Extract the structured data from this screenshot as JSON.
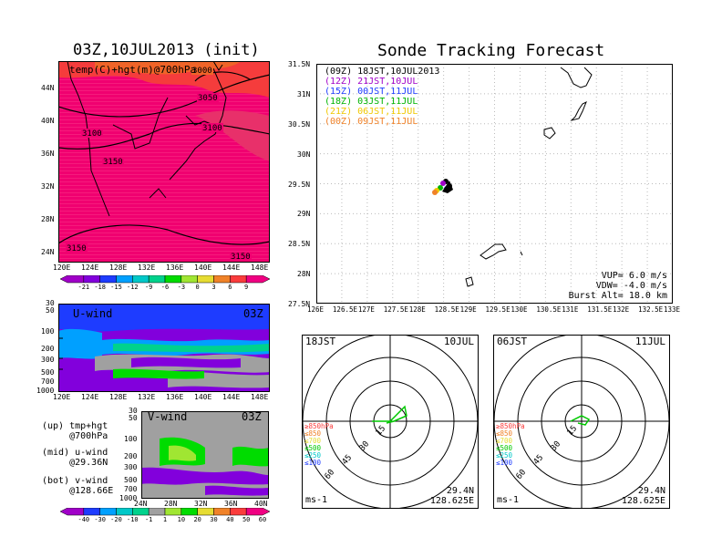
{
  "map_panel": {
    "title": "03Z,10JUL2013 (init)",
    "overlay_label": "temp(C)+hgt(m)@700hPa",
    "contours": [
      "3000",
      "3050",
      "3100",
      "3100",
      "3150",
      "3150",
      "3150"
    ],
    "lat_ticks": [
      "44N",
      "40N",
      "36N",
      "32N",
      "28N",
      "24N"
    ],
    "lon_ticks": [
      "120E",
      "124E",
      "128E",
      "132E",
      "136E",
      "140E",
      "144E",
      "148E"
    ],
    "colorbar_ticks": [
      "-21",
      "-18",
      "-15",
      "-12",
      "-9",
      "-6",
      "-3",
      "0",
      "3",
      "6",
      "9"
    ],
    "colorbar_colors": [
      "#a000c8",
      "#8200dc",
      "#1e3cff",
      "#00a0ff",
      "#00c8c8",
      "#00d28c",
      "#00dc00",
      "#a0e632",
      "#e6dc32",
      "#f08228",
      "#fa3c3c",
      "#f00082"
    ]
  },
  "uwind_panel": {
    "label": "U-wind",
    "time": "03Z",
    "p_ticks": [
      "30",
      "50",
      "100",
      "200",
      "300",
      "500",
      "700",
      "1000"
    ],
    "lon_ticks": [
      "120E",
      "124E",
      "128E",
      "132E",
      "136E",
      "140E",
      "144E",
      "148E"
    ]
  },
  "vwind_panel": {
    "label": "V-wind",
    "time": "03Z",
    "p_ticks": [
      "30",
      "50",
      "100",
      "200",
      "300",
      "500",
      "700",
      "1000"
    ],
    "lat_ticks": [
      "24N",
      "28N",
      "32N",
      "36N",
      "40N"
    ]
  },
  "notes": {
    "up": "(up) tmp+hgt\n     @700hPa",
    "mid": "(mid) u-wind\n     @29.36N",
    "bot": "(bot) v-wind\n     @128.66E"
  },
  "wind_colorbar": {
    "ticks": [
      "-40",
      "-30",
      "-20",
      "-10",
      "-1",
      "1",
      "10",
      "20",
      "30",
      "40",
      "50",
      "60"
    ],
    "colors": [
      "#a000c8",
      "#1e3cff",
      "#00a0ff",
      "#00c8c8",
      "#00d28c",
      "#a0a0a0",
      "#a0e632",
      "#00dc00",
      "#e6dc32",
      "#f08228",
      "#fa3c3c",
      "#f00082"
    ]
  },
  "tracking": {
    "title": "Sonde Tracking Forecast",
    "lat_ticks": [
      "31.5N",
      "31N",
      "30.5N",
      "30N",
      "29.5N",
      "29N",
      "28.5N",
      "28N",
      "27.5N"
    ],
    "lon_ticks": [
      "126E",
      "126.5E",
      "127E",
      "127.5E",
      "128E",
      "128.5E",
      "129E",
      "129.5E",
      "130E",
      "130.5E",
      "131E",
      "131.5E",
      "132E",
      "132.5E",
      "133E"
    ],
    "legend": [
      {
        "text": "(09Z) 18JST,10JUL2013",
        "color": "#000000"
      },
      {
        "text": "(12Z) 21JST,10JUL",
        "color": "#a000c8"
      },
      {
        "text": "(15Z) 00JST,11JUL",
        "color": "#1e3cff"
      },
      {
        "text": "(18Z) 03JST,11JUL",
        "color": "#00b400"
      },
      {
        "text": "(21Z) 06JST,11JUL",
        "color": "#f0c800"
      },
      {
        "text": "(00Z) 09JST,11JUL",
        "color": "#f08228"
      }
    ],
    "vup": "VUP= 6.0 m/s",
    "vdw": "VDW= -4.0 m/s",
    "burst": "Burst Alt= 18.0 km"
  },
  "hodo_left": {
    "time_label": "18JST",
    "date_label": "10JUL",
    "rings": [
      "15",
      "30",
      "45",
      "60"
    ],
    "levels": [
      {
        "text": "≥850hPa",
        "color": "#fa3c3c"
      },
      {
        "text": "≤850",
        "color": "#f08228"
      },
      {
        "text": "≤700",
        "color": "#e6dc32"
      },
      {
        "text": "≤500",
        "color": "#00c800"
      },
      {
        "text": "≤250",
        "color": "#00c8c8"
      },
      {
        "text": "≤100",
        "color": "#1e3cff"
      }
    ],
    "unit": "ms-1",
    "lat": "29.4N",
    "lon": "128.625E"
  },
  "hodo_right": {
    "time_label": "06JST",
    "date_label": "11JUL",
    "rings": [
      "15",
      "30",
      "45",
      "60"
    ],
    "levels": [
      {
        "text": "≥850hPa",
        "color": "#fa3c3c"
      },
      {
        "text": "≤850",
        "color": "#f08228"
      },
      {
        "text": "≤700",
        "color": "#e6dc32"
      },
      {
        "text": "≤500",
        "color": "#00c800"
      },
      {
        "text": "≤250",
        "color": "#00c8c8"
      },
      {
        "text": "≤100",
        "color": "#1e3cff"
      }
    ],
    "unit": "ms-1",
    "lat": "29.4N",
    "lon": "128.625E"
  }
}
